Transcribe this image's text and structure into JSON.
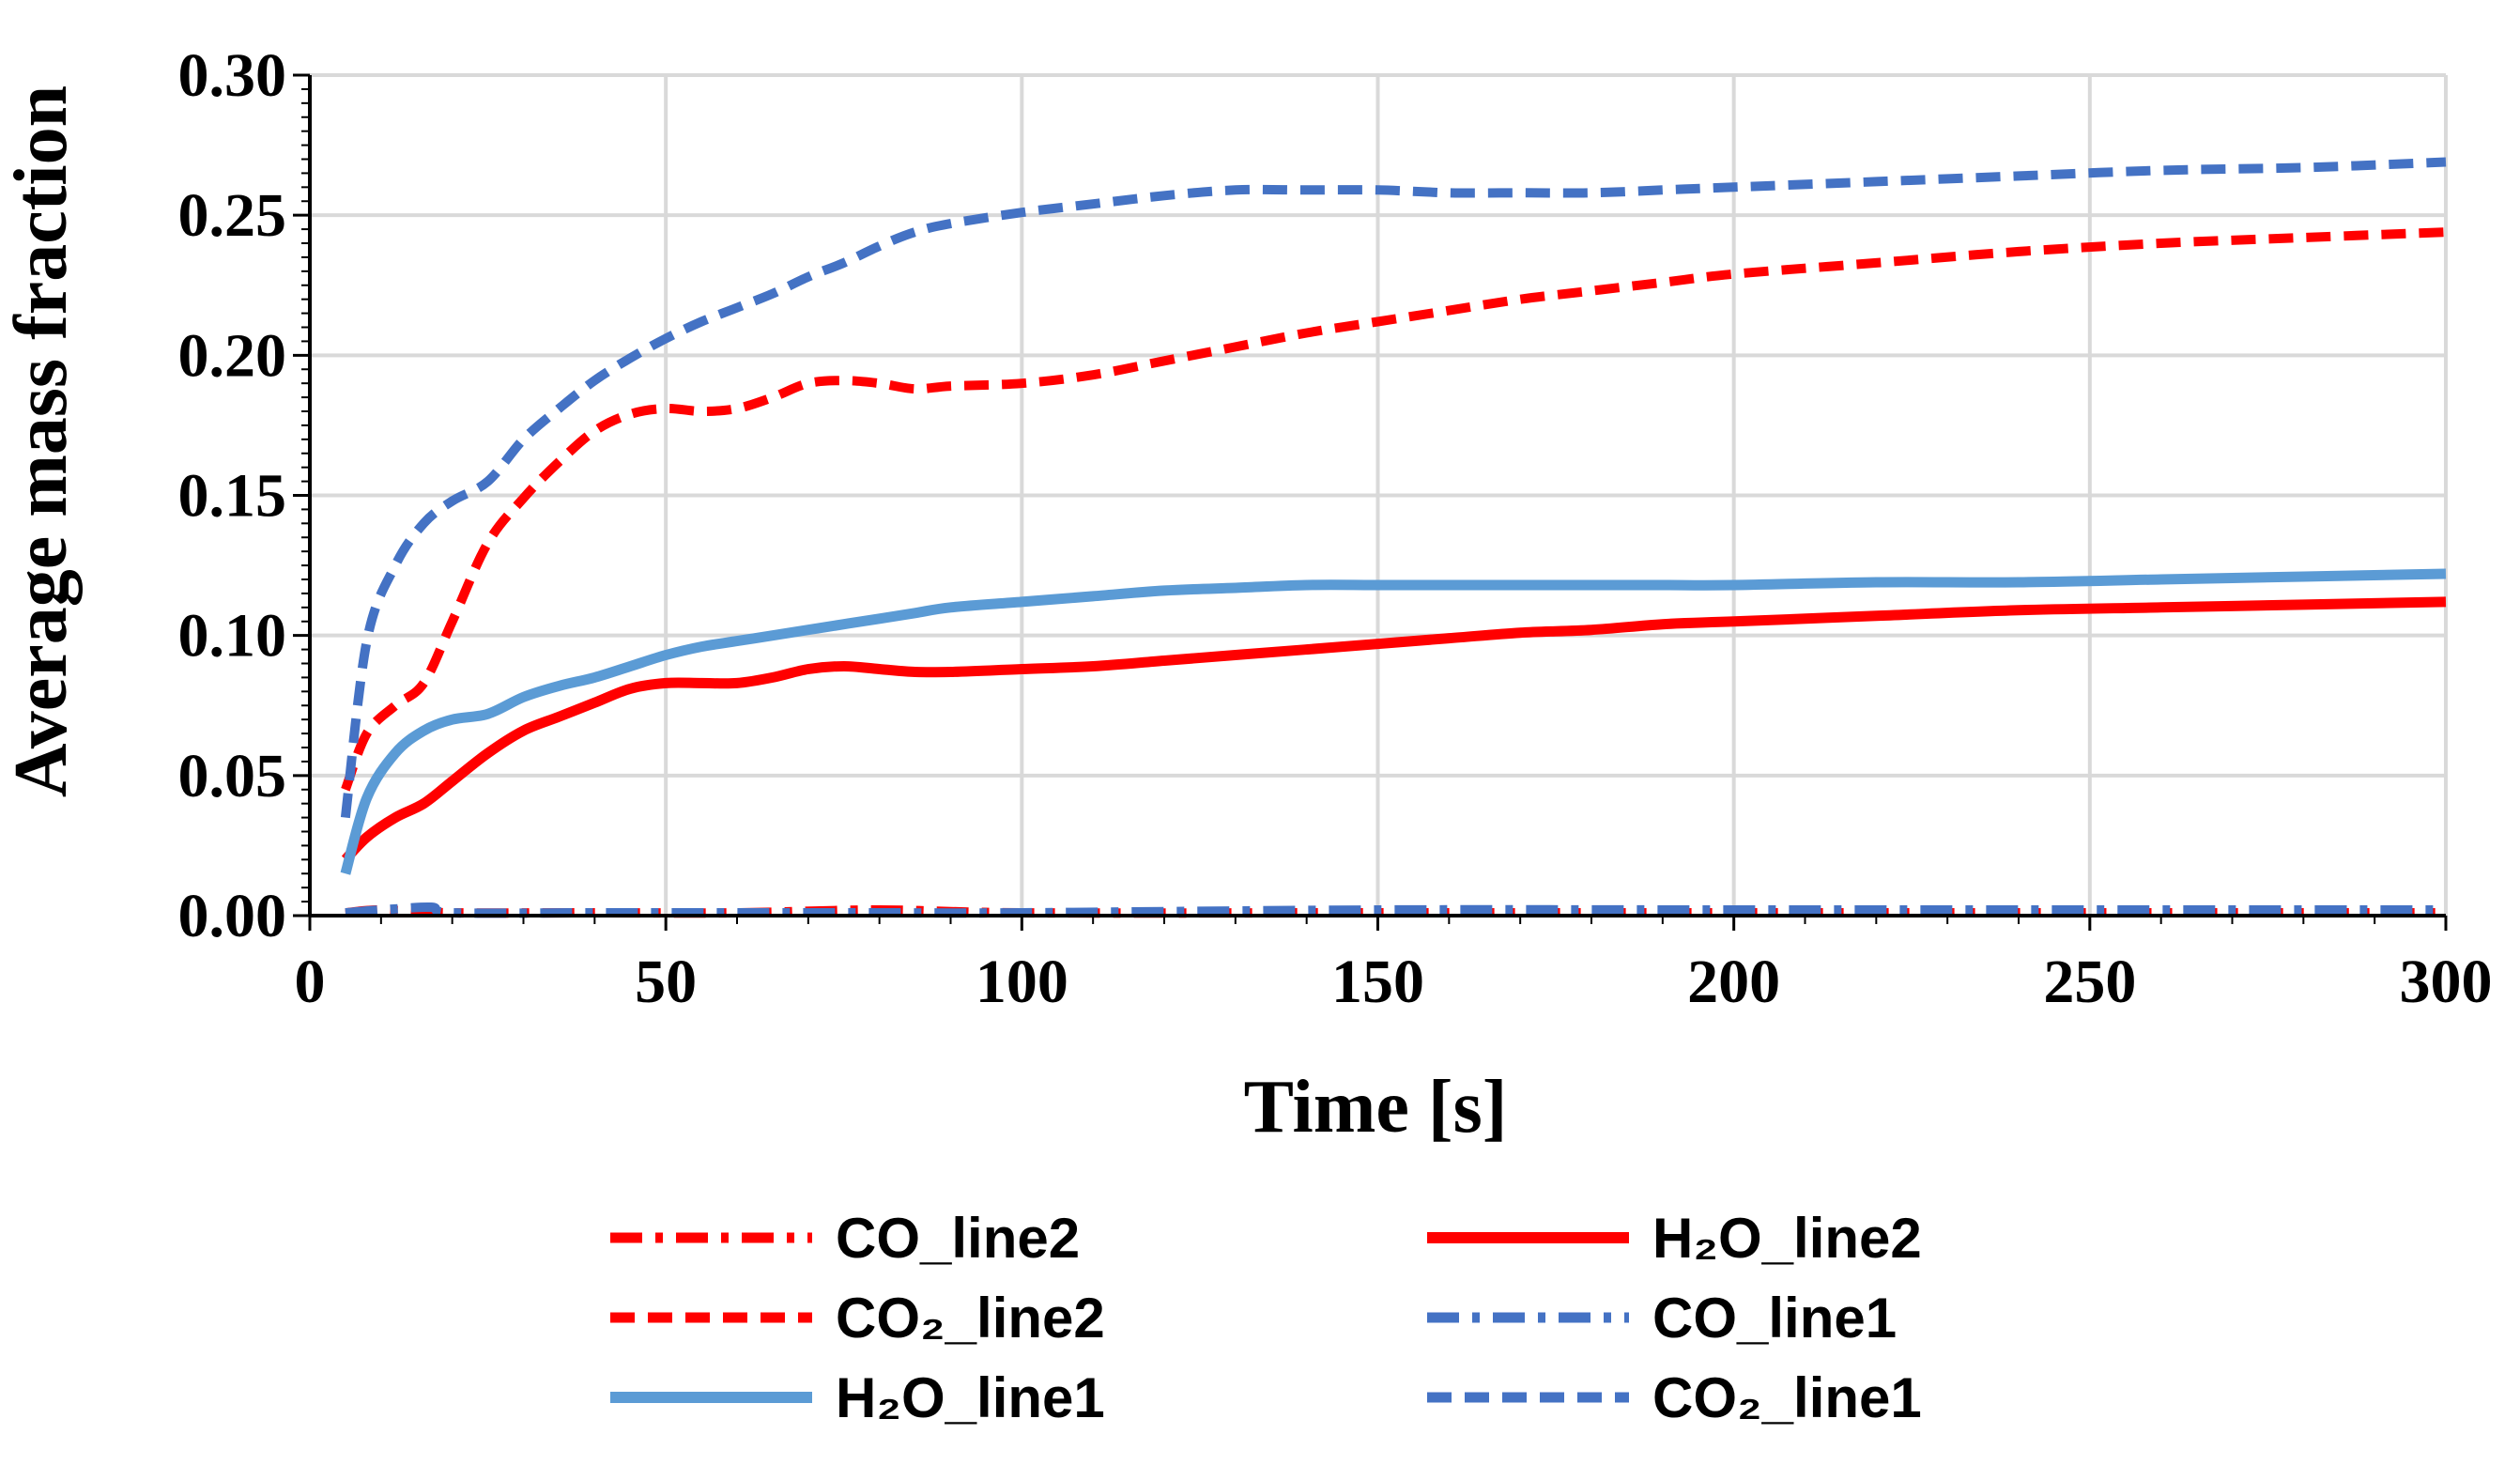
{
  "chart_data": {
    "type": "line",
    "title": "",
    "xlabel": "Time [s]",
    "ylabel": "Average mass fraction",
    "xlim": [
      0,
      300
    ],
    "ylim": [
      0,
      0.3
    ],
    "xticks": [
      "0",
      "50",
      "100",
      "150",
      "200",
      "250",
      "300"
    ],
    "yticks": [
      "0.00",
      "0.05",
      "0.10",
      "0.15",
      "0.20",
      "0.25",
      "0.30"
    ],
    "grid": true,
    "legend_position": "bottom",
    "colors": {
      "red": "#ff0000",
      "blue": "#4472c4",
      "lightblue": "#5b9bd5"
    },
    "series": [
      {
        "name": "CO_line2",
        "color": "#ff0000",
        "dash": "dashdot",
        "x": [
          5,
          10,
          20,
          40,
          60,
          80,
          100,
          150,
          200,
          250,
          300
        ],
        "y": [
          0.001,
          0.002,
          0.001,
          0.001,
          0.001,
          0.002,
          0.001,
          0.001,
          0.001,
          0.001,
          0.001
        ]
      },
      {
        "name": "H₂O_line2",
        "color": "#ff0000",
        "dash": "solid",
        "x": [
          5,
          8,
          12,
          16,
          20,
          25,
          30,
          35,
          40,
          45,
          50,
          55,
          60,
          65,
          70,
          75,
          80,
          85,
          90,
          100,
          110,
          120,
          130,
          140,
          150,
          160,
          170,
          180,
          190,
          200,
          220,
          240,
          260,
          280,
          300
        ],
        "y": [
          0.02,
          0.028,
          0.035,
          0.04,
          0.048,
          0.058,
          0.066,
          0.071,
          0.076,
          0.081,
          0.083,
          0.083,
          0.083,
          0.085,
          0.088,
          0.089,
          0.088,
          0.087,
          0.087,
          0.088,
          0.089,
          0.091,
          0.093,
          0.095,
          0.097,
          0.099,
          0.101,
          0.102,
          0.104,
          0.105,
          0.107,
          0.109,
          0.11,
          0.111,
          0.112
        ]
      },
      {
        "name": "CO₂_line2",
        "color": "#ff0000",
        "dash": "dash",
        "x": [
          5,
          8,
          12,
          16,
          20,
          25,
          30,
          35,
          40,
          45,
          50,
          55,
          60,
          65,
          70,
          75,
          80,
          85,
          90,
          100,
          110,
          120,
          130,
          140,
          150,
          160,
          170,
          180,
          190,
          200,
          220,
          240,
          260,
          280,
          300
        ],
        "y": [
          0.045,
          0.065,
          0.075,
          0.083,
          0.105,
          0.133,
          0.149,
          0.162,
          0.173,
          0.179,
          0.181,
          0.18,
          0.181,
          0.185,
          0.19,
          0.191,
          0.19,
          0.188,
          0.189,
          0.19,
          0.193,
          0.198,
          0.203,
          0.208,
          0.212,
          0.216,
          0.22,
          0.223,
          0.226,
          0.229,
          0.233,
          0.237,
          0.24,
          0.242,
          0.244
        ]
      },
      {
        "name": "CO_line1",
        "color": "#4472c4",
        "dash": "dashdot",
        "x": [
          5,
          10,
          17,
          20,
          40,
          60,
          80,
          100,
          150,
          200,
          250,
          300
        ],
        "y": [
          0.001,
          0.002,
          0.003,
          0.001,
          0.001,
          0.001,
          0.001,
          0.001,
          0.002,
          0.002,
          0.002,
          0.002
        ]
      },
      {
        "name": "H₂O_line1",
        "color": "#5b9bd5",
        "dash": "solid",
        "x": [
          5,
          8,
          12,
          16,
          20,
          25,
          30,
          35,
          40,
          45,
          50,
          55,
          60,
          65,
          70,
          75,
          80,
          85,
          90,
          100,
          110,
          120,
          130,
          140,
          150,
          160,
          170,
          180,
          190,
          200,
          220,
          240,
          260,
          280,
          300
        ],
        "y": [
          0.015,
          0.042,
          0.058,
          0.066,
          0.07,
          0.072,
          0.078,
          0.082,
          0.085,
          0.089,
          0.093,
          0.096,
          0.098,
          0.1,
          0.102,
          0.104,
          0.106,
          0.108,
          0.11,
          0.112,
          0.114,
          0.116,
          0.117,
          0.118,
          0.118,
          0.118,
          0.118,
          0.118,
          0.118,
          0.118,
          0.119,
          0.119,
          0.12,
          0.121,
          0.122
        ]
      },
      {
        "name": "CO₂_line1",
        "color": "#4472c4",
        "dash": "dash",
        "x": [
          5,
          8,
          12,
          16,
          20,
          25,
          30,
          35,
          40,
          45,
          50,
          55,
          60,
          65,
          70,
          75,
          80,
          85,
          90,
          100,
          110,
          120,
          130,
          140,
          150,
          160,
          170,
          180,
          190,
          200,
          220,
          240,
          260,
          280,
          300
        ],
        "y": [
          0.035,
          0.098,
          0.125,
          0.14,
          0.148,
          0.155,
          0.17,
          0.181,
          0.191,
          0.199,
          0.206,
          0.212,
          0.217,
          0.222,
          0.228,
          0.233,
          0.239,
          0.244,
          0.247,
          0.251,
          0.254,
          0.257,
          0.259,
          0.259,
          0.259,
          0.258,
          0.258,
          0.258,
          0.259,
          0.26,
          0.262,
          0.264,
          0.266,
          0.267,
          0.269
        ]
      }
    ],
    "legend": {
      "items": [
        {
          "label": "CO_line2",
          "color": "#ff0000",
          "dash": "dashdot"
        },
        {
          "label": "H₂O_line2",
          "color": "#ff0000",
          "dash": "solid"
        },
        {
          "label": "CO₂_line2",
          "color": "#ff0000",
          "dash": "dash"
        },
        {
          "label": "CO_line1",
          "color": "#4472c4",
          "dash": "dashdot"
        },
        {
          "label": "H₂O_line1",
          "color": "#5b9bd5",
          "dash": "solid"
        },
        {
          "label": "CO₂_line1",
          "color": "#4472c4",
          "dash": "dash"
        }
      ]
    }
  }
}
